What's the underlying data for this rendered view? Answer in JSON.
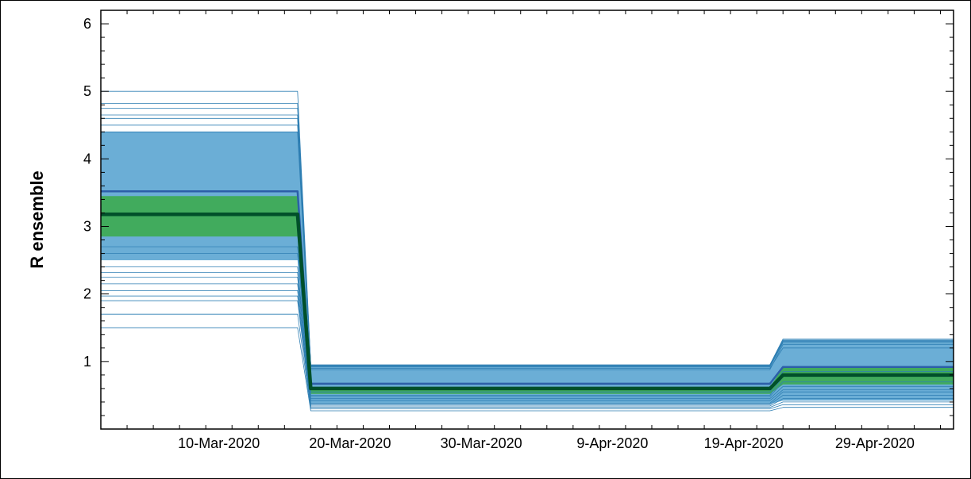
{
  "chart_data": {
    "type": "line",
    "title": "",
    "xlabel": "",
    "ylabel": "R ensemble",
    "x_range": [
      "2020-03-01",
      "2020-05-05"
    ],
    "ylim": [
      0,
      6.2
    ],
    "y_ticks": [
      1,
      2,
      3,
      4,
      5,
      6
    ],
    "y_tick_labels": [
      "1",
      "2",
      "3",
      "4",
      "5",
      "6"
    ],
    "x_ticks": [
      "2020-03-10",
      "2020-03-20",
      "2020-03-30",
      "2020-04-09",
      "2020-04-19",
      "2020-04-29"
    ],
    "x_tick_labels": [
      "10-Mar-2020",
      "20-Mar-2020",
      "30-Mar-2020",
      "9-Apr-2020",
      "19-Apr-2020",
      "29-Apr-2020"
    ],
    "grid": false,
    "legend": "none",
    "breakpoints": {
      "drop_start": "2020-03-16",
      "drop_end": "2020-03-17",
      "rise_start": "2020-04-21",
      "rise_end": "2020-04-22"
    },
    "bands": [
      {
        "name": "",
        "color": "#6baed6",
        "segment_values": [
          [
            2.5,
            4.4
          ],
          [
            0.37,
            0.95
          ],
          [
            0.42,
            1.32
          ]
        ]
      },
      {
        "name": "",
        "color": "#41ab5d",
        "segment_values": [
          [
            2.85,
            3.45
          ],
          [
            0.52,
            0.62
          ],
          [
            0.66,
            0.92
          ]
        ]
      }
    ],
    "series": [
      {
        "name": "",
        "color": "#2f7fb3",
        "segment_values": [
          1.5,
          0.27,
          0.32
        ]
      },
      {
        "name": "",
        "color": "#2f7fb3",
        "segment_values": [
          1.7,
          0.3,
          0.36
        ]
      },
      {
        "name": "",
        "color": "#2f7fb3",
        "segment_values": [
          1.9,
          0.32,
          0.4
        ]
      },
      {
        "name": "",
        "color": "#2f7fb3",
        "segment_values": [
          1.97,
          0.34,
          0.45
        ]
      },
      {
        "name": "",
        "color": "#2f7fb3",
        "segment_values": [
          2.05,
          0.36,
          0.5
        ]
      },
      {
        "name": "",
        "color": "#2f7fb3",
        "segment_values": [
          2.15,
          0.38,
          0.55
        ]
      },
      {
        "name": "",
        "color": "#2f7fb3",
        "segment_values": [
          2.25,
          0.42,
          0.58
        ]
      },
      {
        "name": "",
        "color": "#2f7fb3",
        "segment_values": [
          2.32,
          0.45,
          0.63
        ]
      },
      {
        "name": "",
        "color": "#2f7fb3",
        "segment_values": [
          2.4,
          0.48,
          0.7
        ]
      },
      {
        "name": "",
        "color": "#2f7fb3",
        "segment_values": [
          2.6,
          0.5,
          0.78
        ]
      },
      {
        "name": "",
        "color": "#2f7fb3",
        "segment_values": [
          2.7,
          0.55,
          0.85
        ]
      },
      {
        "name": "",
        "color": "#2f7fb3",
        "segment_values": [
          4.4,
          0.9,
          1.2
        ]
      },
      {
        "name": "",
        "color": "#2f7fb3",
        "segment_values": [
          4.5,
          0.95,
          1.33
        ]
      },
      {
        "name": "",
        "color": "#2f7fb3",
        "segment_values": [
          4.6,
          0.88,
          1.25
        ]
      },
      {
        "name": "",
        "color": "#2f7fb3",
        "segment_values": [
          4.65,
          0.92,
          1.28
        ]
      },
      {
        "name": "",
        "color": "#2f7fb3",
        "segment_values": [
          4.75,
          0.93,
          1.3
        ]
      },
      {
        "name": "",
        "color": "#2f7fb3",
        "segment_values": [
          4.82,
          0.94,
          1.31
        ]
      },
      {
        "name": "",
        "color": "#2f7fb3",
        "segment_values": [
          5.0,
          0.95,
          1.33
        ]
      },
      {
        "name": "",
        "color": "#2c5fa8",
        "segment_values": [
          3.52,
          0.67,
          0.92
        ]
      },
      {
        "name": "",
        "color": "#00502a",
        "segment_values": [
          3.18,
          0.6,
          0.8
        ]
      }
    ]
  }
}
